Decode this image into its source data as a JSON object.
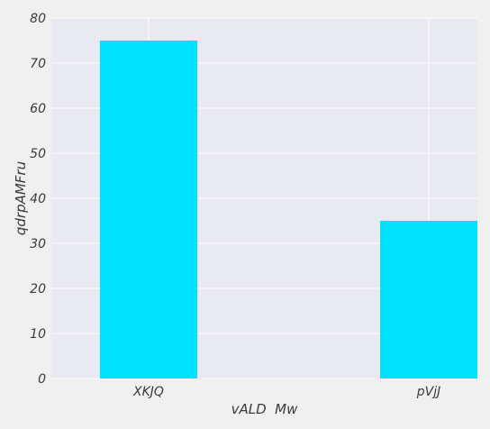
{
  "chart_data": {
    "type": "bar",
    "categories": [
      "XKJQ",
      "pVjJ"
    ],
    "values": [
      75,
      35
    ],
    "title": "",
    "xlabel": "vALD  Mw",
    "ylabel": "qdrpAMFru",
    "ylim": [
      0,
      80
    ],
    "yticks": [
      0,
      10,
      20,
      30,
      40,
      50,
      60,
      70,
      80
    ],
    "grid": true,
    "colors": {
      "bar": "#00e1ff",
      "plot_background": "#e9e9f1",
      "figure_background": "#f0f0f0",
      "grid": "#ffffff",
      "text": "#3a3a3a"
    }
  }
}
